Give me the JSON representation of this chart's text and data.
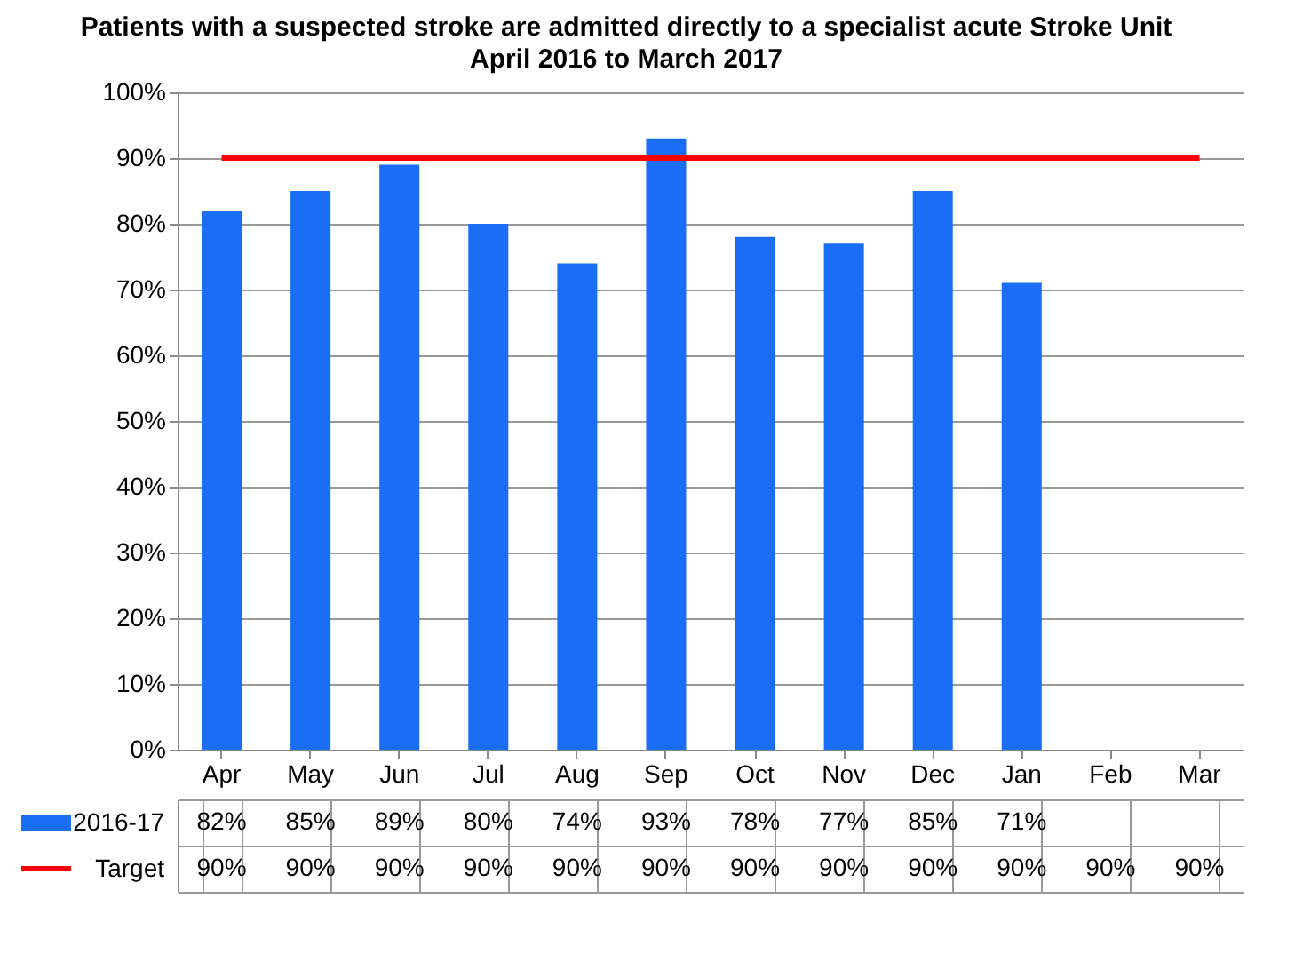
{
  "chart_data": {
    "type": "bar",
    "title": "Patients with a suspected stroke are admitted directly to a specialist acute Stroke Unit",
    "subtitle": "April 2016 to March 2017",
    "categories": [
      "Apr",
      "May",
      "Jun",
      "Jul",
      "Aug",
      "Sep",
      "Oct",
      "Nov",
      "Dec",
      "Jan",
      "Feb",
      "Mar"
    ],
    "series": [
      {
        "name": "2016-17",
        "color": "#1a6ef5",
        "values": [
          82,
          85,
          89,
          80,
          74,
          93,
          78,
          77,
          85,
          71,
          null,
          null
        ],
        "value_labels": [
          "82%",
          "85%",
          "89%",
          "80%",
          "74%",
          "93%",
          "78%",
          "77%",
          "85%",
          "71%",
          null,
          null
        ]
      },
      {
        "name": "Target",
        "type": "line",
        "color": "#ff0000",
        "values": [
          90,
          90,
          90,
          90,
          90,
          90,
          90,
          90,
          90,
          90,
          90,
          90
        ],
        "value_labels": [
          "90%",
          "90%",
          "90%",
          "90%",
          "90%",
          "90%",
          "90%",
          "90%",
          "90%",
          "90%",
          "90%",
          "90%"
        ]
      }
    ],
    "ylim": [
      0,
      100
    ],
    "yticks": [
      {
        "value": 0,
        "label": "0%"
      },
      {
        "value": 10,
        "label": "10%"
      },
      {
        "value": 20,
        "label": "20%"
      },
      {
        "value": 30,
        "label": "30%"
      },
      {
        "value": 40,
        "label": "40%"
      },
      {
        "value": 50,
        "label": "50%"
      },
      {
        "value": 60,
        "label": "60%"
      },
      {
        "value": 70,
        "label": "70%"
      },
      {
        "value": 80,
        "label": "80%"
      },
      {
        "value": 90,
        "label": "90%"
      },
      {
        "value": 100,
        "label": "100%"
      }
    ],
    "grid": "y",
    "legend": "bottom"
  }
}
